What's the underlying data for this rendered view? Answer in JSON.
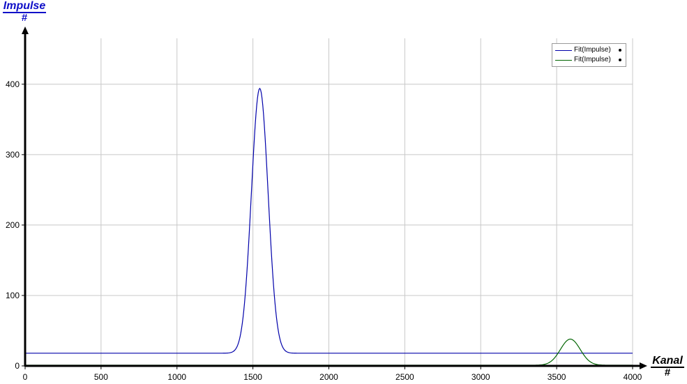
{
  "chart_data": {
    "type": "line",
    "title": "",
    "xlabel": "Kanal",
    "xunit": "#",
    "ylabel": "Impulse",
    "yunit": "#",
    "xlim": [
      0,
      4000
    ],
    "ylim": [
      0,
      480
    ],
    "xticks": [
      0,
      500,
      1000,
      1500,
      2000,
      2500,
      3000,
      3500,
      4000
    ],
    "yticks": [
      0,
      100,
      200,
      300,
      400
    ],
    "grid": true,
    "legend_position": "top-right",
    "series": [
      {
        "name": "Fit(Impulse)",
        "color": "#0000aa",
        "shape": "gaussian",
        "baseline": 18,
        "peak_center": 1545,
        "peak_height": 376,
        "peak_sigma": 55
      },
      {
        "name": "Fit(Impulse)",
        "color": "#006400",
        "shape": "gaussian",
        "baseline": 1,
        "peak_center": 3590,
        "peak_height": 37,
        "peak_sigma": 65
      }
    ]
  }
}
